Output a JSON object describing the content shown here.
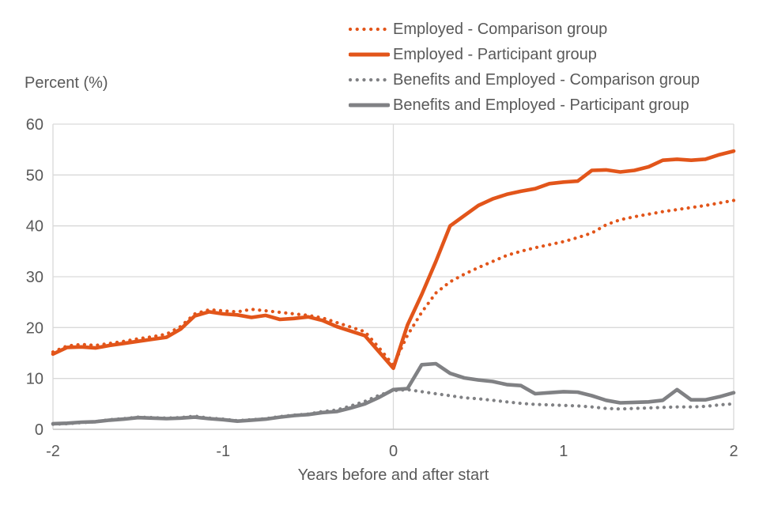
{
  "chart_data": {
    "type": "line",
    "title": "",
    "ylabel": "Percent (%)",
    "xlabel": "Years before and after start",
    "ylim": [
      0,
      60
    ],
    "xlim": [
      -2,
      2
    ],
    "y_ticks": [
      0,
      10,
      20,
      30,
      40,
      50,
      60
    ],
    "x_ticks": [
      -2,
      -1,
      0,
      1,
      2
    ],
    "grid": {
      "horizontal": true,
      "vertical_line_at_x": 0
    },
    "legend_position": "top-right",
    "x_unit": "years relative to start (monthly observations)",
    "x_months": [
      -24,
      -23,
      -22,
      -21,
      -20,
      -19,
      -18,
      -17,
      -16,
      -15,
      -14,
      -13,
      -12,
      -11,
      -10,
      -9,
      -8,
      -7,
      -6,
      -5,
      -4,
      -3,
      -2,
      -1,
      0,
      1,
      2,
      3,
      4,
      5,
      6,
      7,
      8,
      9,
      10,
      11,
      12,
      13,
      14,
      15,
      16,
      17,
      18,
      19,
      20,
      21,
      22,
      23,
      24
    ],
    "colors": {
      "employed": "#e2551a",
      "benefits_and_employed": "#808184"
    },
    "series": [
      {
        "name": "Employed - Comparison group",
        "color": "#e2551a",
        "line_style": "dotted",
        "values": [
          15.2,
          16.4,
          16.7,
          16.5,
          16.9,
          17.3,
          17.8,
          18.2,
          18.7,
          20.2,
          22.7,
          23.5,
          23.3,
          23.1,
          23.6,
          23.3,
          23.0,
          22.7,
          22.4,
          21.9,
          21.0,
          20.1,
          19.2,
          16.0,
          12.6,
          18.5,
          23.0,
          26.8,
          29.0,
          30.5,
          31.8,
          33.0,
          34.2,
          35.0,
          35.7,
          36.3,
          36.9,
          37.7,
          38.6,
          40.2,
          41.2,
          41.8,
          42.3,
          42.8,
          43.2,
          43.6,
          44.0,
          44.5,
          45.0
        ]
      },
      {
        "name": "Employed - Participant group",
        "color": "#e2551a",
        "line_style": "solid",
        "values": [
          14.8,
          16.1,
          16.2,
          16.0,
          16.5,
          16.9,
          17.3,
          17.7,
          18.1,
          19.7,
          22.3,
          23.1,
          22.7,
          22.5,
          22.0,
          22.4,
          21.6,
          21.8,
          22.1,
          21.4,
          20.2,
          19.3,
          18.4,
          15.2,
          12.0,
          20.5,
          26.5,
          33.0,
          40.0,
          42.0,
          44.0,
          45.3,
          46.2,
          46.8,
          47.3,
          48.3,
          48.6,
          48.8,
          50.9,
          51.0,
          50.6,
          50.9,
          51.6,
          52.9,
          53.1,
          52.9,
          53.1,
          54.0,
          54.7
        ]
      },
      {
        "name": "Benefits and Employed - Comparison group",
        "color": "#808184",
        "line_style": "dotted",
        "values": [
          1.0,
          1.1,
          1.3,
          1.5,
          1.9,
          2.1,
          2.4,
          2.3,
          2.2,
          2.3,
          2.6,
          2.2,
          2.0,
          1.7,
          1.9,
          2.1,
          2.5,
          2.8,
          3.0,
          3.5,
          3.8,
          4.6,
          5.5,
          6.7,
          7.6,
          7.8,
          7.4,
          7.0,
          6.6,
          6.2,
          6.0,
          5.7,
          5.4,
          5.1,
          4.9,
          4.8,
          4.7,
          4.6,
          4.4,
          4.1,
          4.0,
          4.1,
          4.2,
          4.3,
          4.4,
          4.4,
          4.5,
          4.8,
          5.0
        ]
      },
      {
        "name": "Benefits and Employed - Participant group",
        "color": "#808184",
        "line_style": "solid",
        "values": [
          1.1,
          1.2,
          1.4,
          1.5,
          1.8,
          2.0,
          2.3,
          2.2,
          2.1,
          2.2,
          2.4,
          2.1,
          1.9,
          1.6,
          1.8,
          2.0,
          2.4,
          2.7,
          2.9,
          3.3,
          3.5,
          4.2,
          5.0,
          6.3,
          7.8,
          8.0,
          12.7,
          12.9,
          11.0,
          10.1,
          9.7,
          9.4,
          8.8,
          8.6,
          7.0,
          7.2,
          7.4,
          7.3,
          6.6,
          5.7,
          5.2,
          5.3,
          5.4,
          5.7,
          7.8,
          5.8,
          5.8,
          6.4,
          7.2
        ]
      }
    ]
  }
}
